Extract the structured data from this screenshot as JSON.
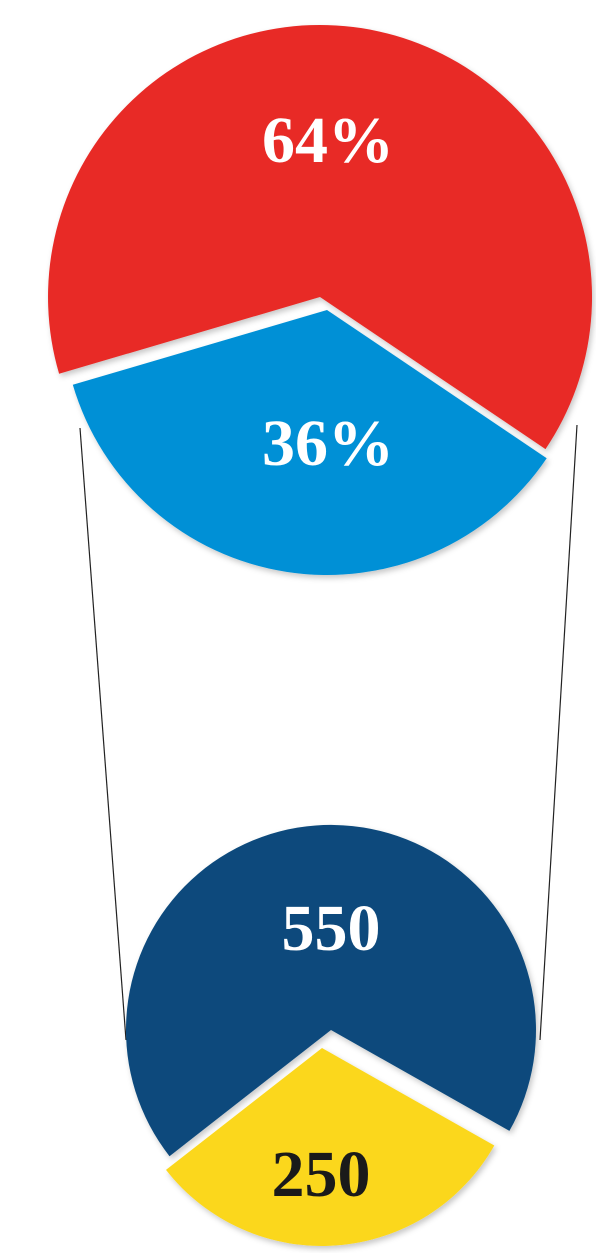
{
  "chart_data": [
    {
      "type": "pie",
      "title": "",
      "slices": [
        {
          "label": "64%",
          "value": 64,
          "color": "#e82b27"
        },
        {
          "label": "36%",
          "value": 36,
          "color": "#0190d6"
        }
      ]
    },
    {
      "type": "pie",
      "title": "",
      "slices": [
        {
          "label": "550",
          "value": 550,
          "color": "#094a7c"
        },
        {
          "label": "250",
          "value": 250,
          "color": "#fbd71b"
        }
      ]
    }
  ],
  "label_colors": {
    "light": "#ffffff",
    "dark": "#1a1a1a"
  },
  "connector_color": "#222222"
}
